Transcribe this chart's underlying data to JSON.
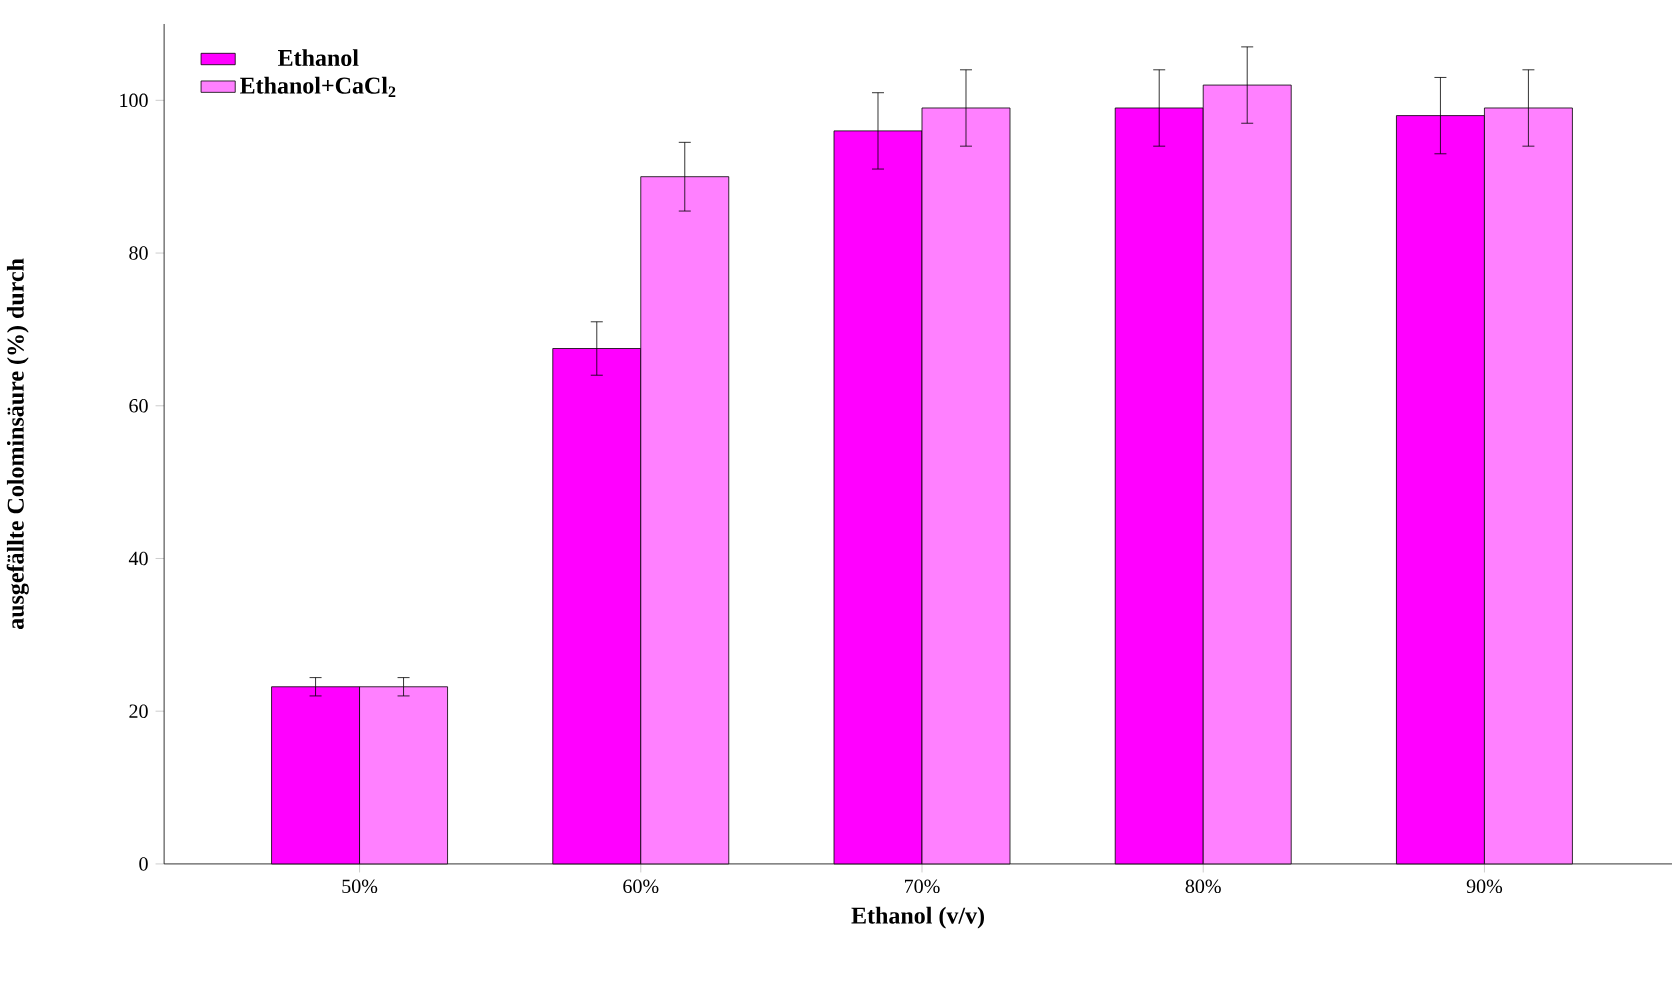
{
  "chart_data": {
    "type": "bar",
    "xlabel": "Ethanol (v/v)",
    "ylabel": "ausgefällte Colominsäure (%) durch",
    "categories": [
      "50%",
      "60%",
      "70%",
      "80%",
      "90%"
    ],
    "series": [
      {
        "name": "Ethanol",
        "color": "#ff00ff",
        "values": [
          23.2,
          67.5,
          96,
          99,
          98
        ],
        "errors": [
          1.2,
          3.5,
          5,
          5,
          5
        ]
      },
      {
        "name": "Ethanol+CaCl$_{2}$",
        "color": "#ff80ff",
        "values": [
          23.2,
          90,
          99,
          102,
          99
        ],
        "errors": [
          1.2,
          4.5,
          5,
          5,
          5
        ]
      }
    ],
    "ylim": [
      0,
      110
    ],
    "yticks": [
      0,
      20,
      40,
      60,
      80,
      100
    ],
    "legend": "top left",
    "grid": false
  }
}
